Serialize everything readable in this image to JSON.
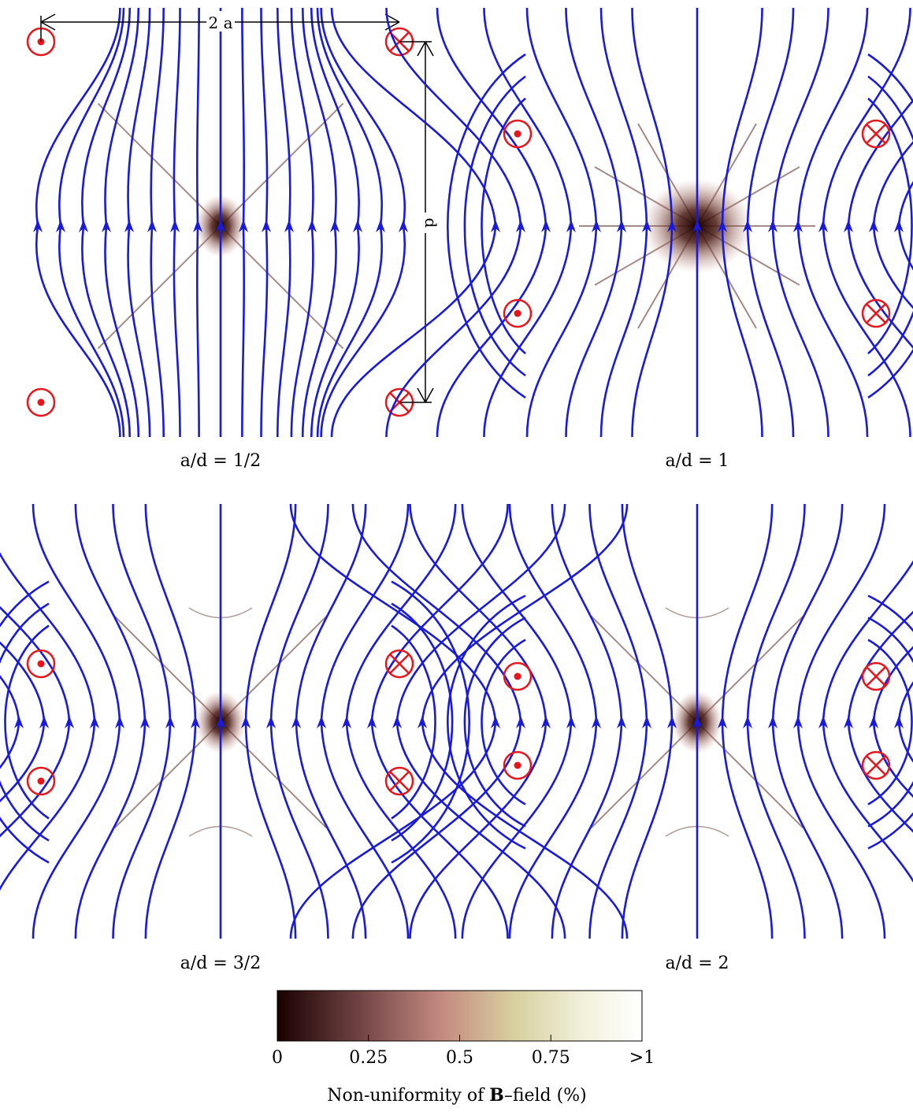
{
  "panels": [
    {
      "id": "p1",
      "label": "a/d = 1/2",
      "ratio": 0.5,
      "dimension_labels": {
        "width": "2 a",
        "height": "d"
      }
    },
    {
      "id": "p2",
      "label": "a/d = 1",
      "ratio": 1.0
    },
    {
      "id": "p3",
      "label": "a/d = 3/2",
      "ratio": 1.5
    },
    {
      "id": "p4",
      "label": "a/d = 2",
      "ratio": 2.0
    }
  ],
  "colorbar": {
    "title": "Non-uniformity of B–field (%)",
    "title_bold_part": "B",
    "title_prefix": "Non-uniformity of ",
    "title_suffix": "–field (%)",
    "ticks": [
      "0",
      "0.25",
      "0.5",
      "0.75",
      ">1"
    ]
  },
  "colors": {
    "field_lines": "#1a1adb",
    "conductors": "#e8161c",
    "nonuniformity_dark": "#2a0505",
    "nonuniformity_mid": "#c48a80",
    "nonuniformity_light": "#ece9c8"
  },
  "conductors": {
    "left_symbol": "out-of-page (dot)",
    "right_symbol": "into-page (cross)"
  }
}
